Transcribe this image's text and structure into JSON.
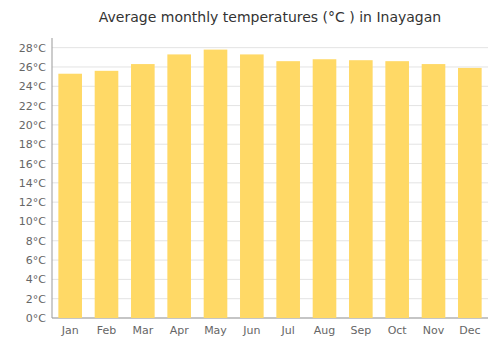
{
  "chart_data": {
    "type": "bar",
    "title": "Average monthly temperatures (°C ) in Inayagan",
    "categories": [
      "Jan",
      "Feb",
      "Mar",
      "Apr",
      "May",
      "Jun",
      "Jul",
      "Aug",
      "Sep",
      "Oct",
      "Nov",
      "Dec"
    ],
    "values": [
      25.3,
      25.6,
      26.3,
      27.3,
      27.8,
      27.3,
      26.6,
      26.8,
      26.7,
      26.6,
      26.3,
      25.9
    ],
    "color": "#FFD966",
    "ylim": [
      0,
      29
    ],
    "yticks": [
      {
        "value": 0,
        "label": "0°C"
      },
      {
        "value": 2,
        "label": "2°C"
      },
      {
        "value": 4,
        "label": "4°C"
      },
      {
        "value": 6,
        "label": "6°C"
      },
      {
        "value": 8,
        "label": "8°C"
      },
      {
        "value": 10,
        "label": "10°C"
      },
      {
        "value": 12,
        "label": "12°C"
      },
      {
        "value": 14,
        "label": "14°C"
      },
      {
        "value": 16,
        "label": "16°C"
      },
      {
        "value": 18,
        "label": "18°C"
      },
      {
        "value": 20,
        "label": "20°C"
      },
      {
        "value": 22,
        "label": "22°C"
      },
      {
        "value": 24,
        "label": "24°C"
      },
      {
        "value": 26,
        "label": "26°C"
      },
      {
        "value": 28,
        "label": "28°C"
      }
    ],
    "grid": true
  }
}
